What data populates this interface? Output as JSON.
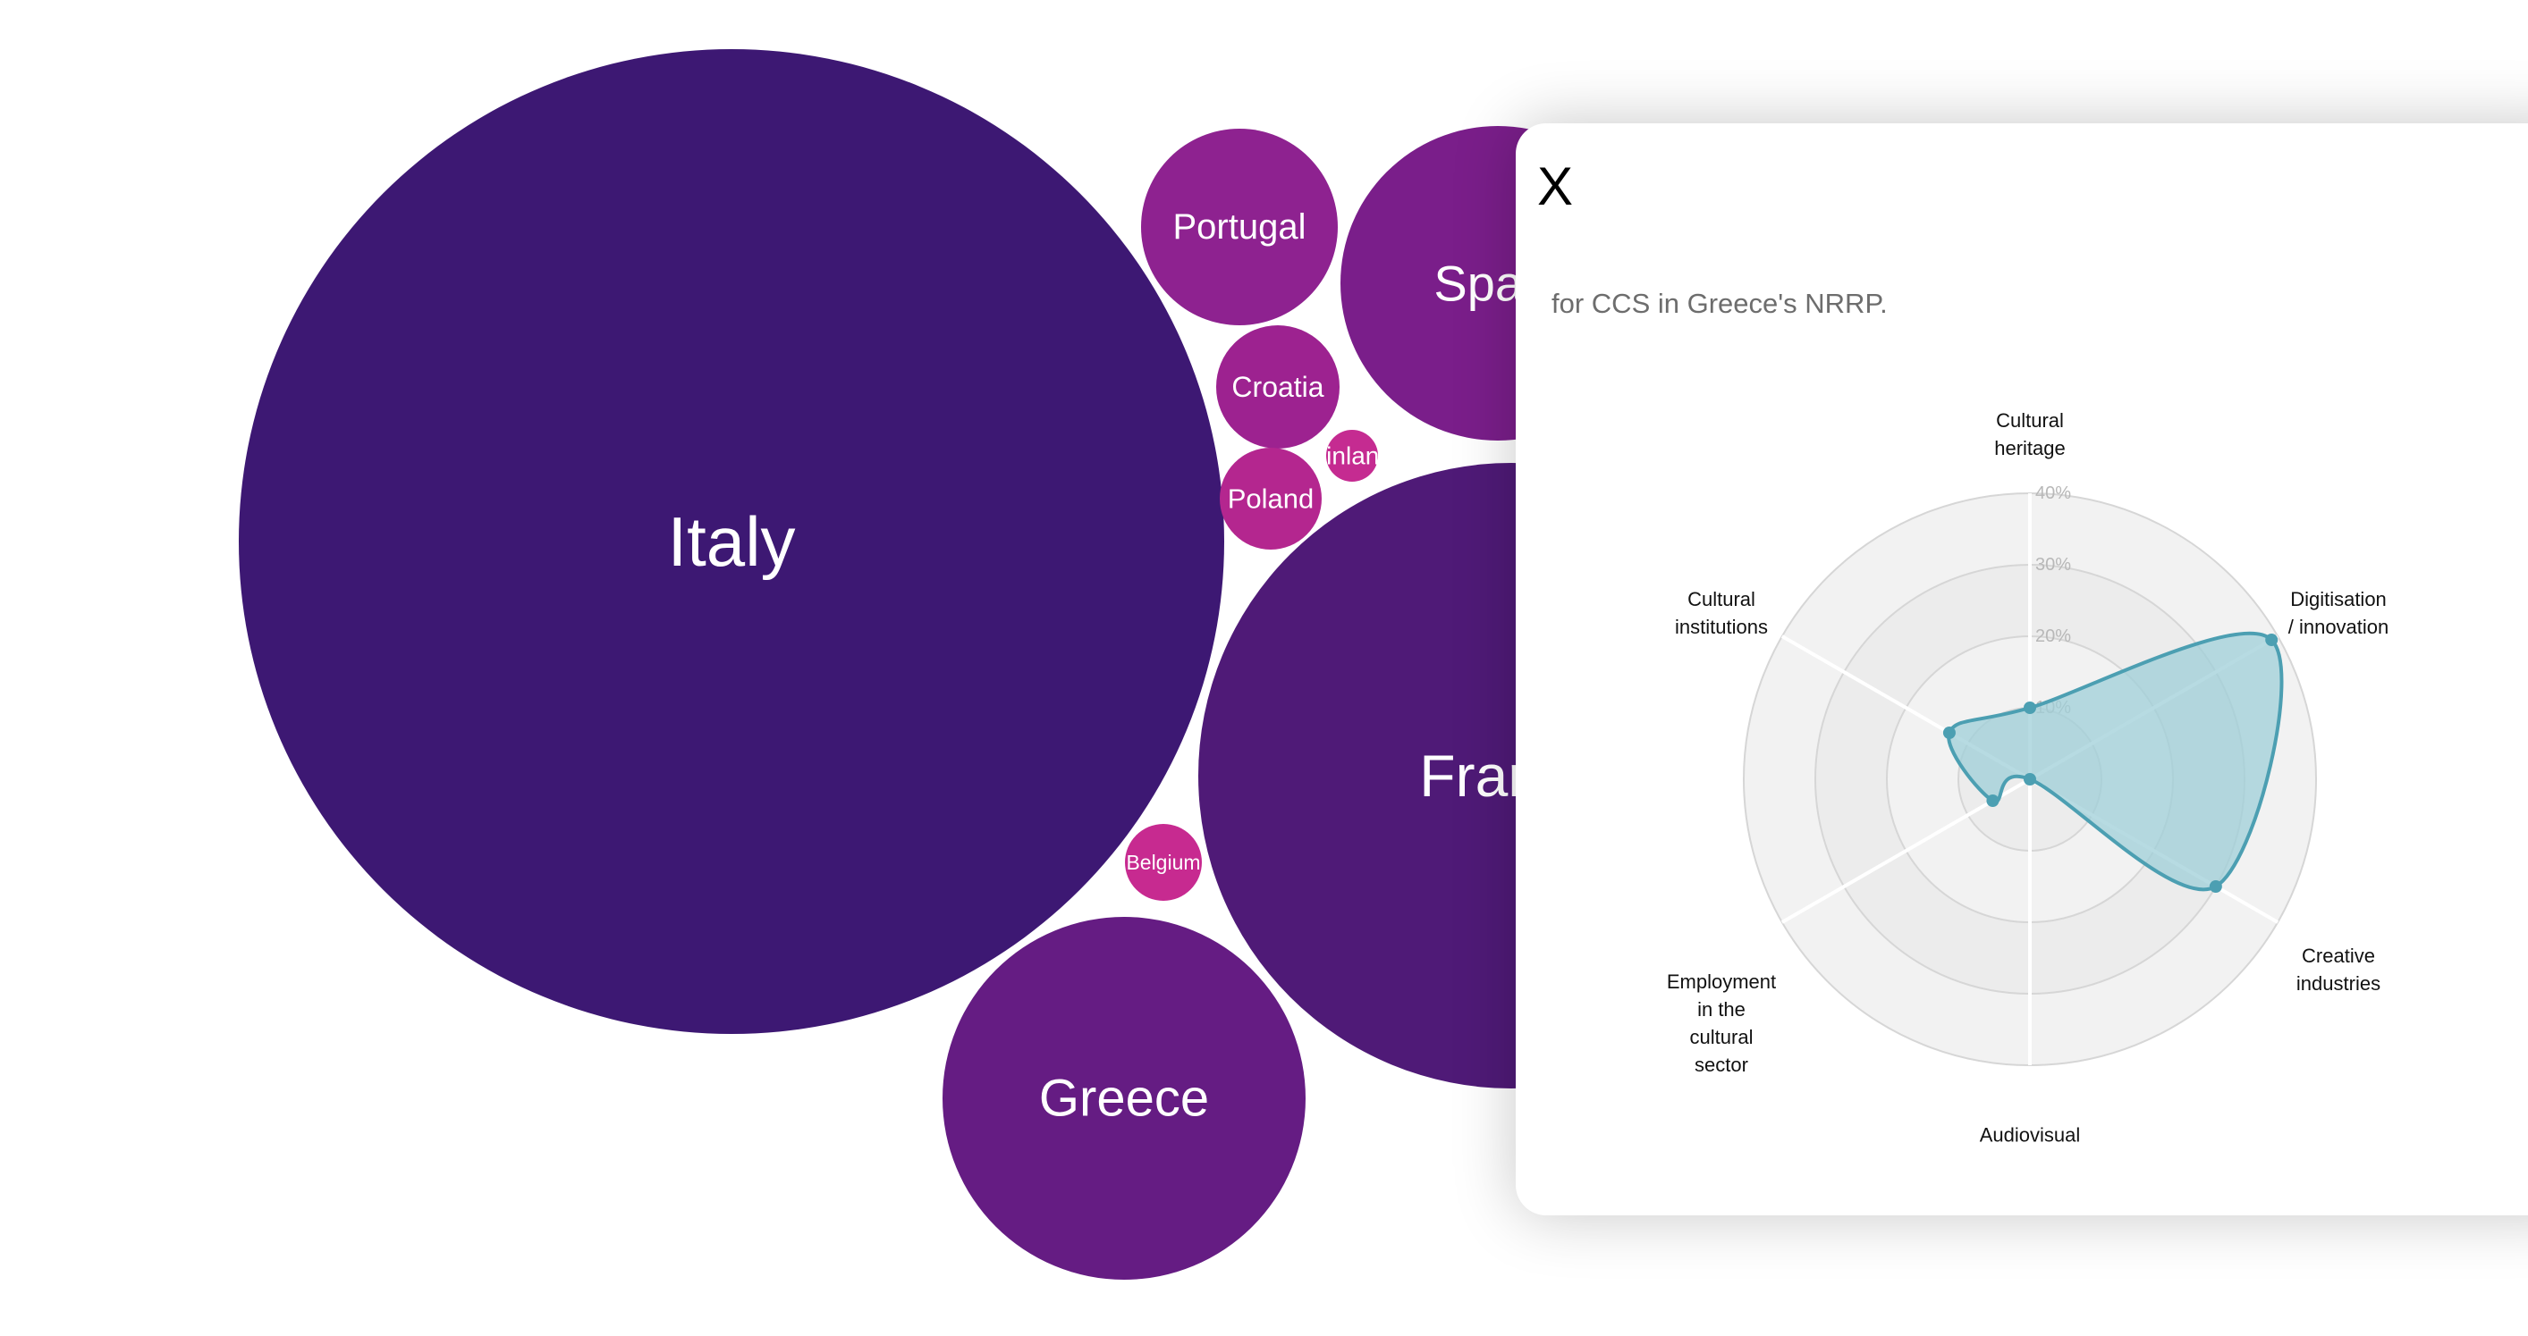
{
  "chart_data": [
    {
      "type": "bubble",
      "bubbles": [
        {
          "label": "Italy",
          "color": "#3d1873"
        },
        {
          "label": "France",
          "color": "#4f1a77"
        },
        {
          "label": "Spain",
          "color": "#7a1e8a"
        },
        {
          "label": "Greece",
          "color": "#651c83"
        },
        {
          "label": "Portugal",
          "color": "#8e2290"
        },
        {
          "label": "Croatia",
          "color": "#9d2290"
        },
        {
          "label": "Poland",
          "color": "#b4268f"
        },
        {
          "label": "Finland",
          "color": "#c52b91"
        },
        {
          "label": "Belgium",
          "color": "#c72a90"
        }
      ]
    },
    {
      "type": "radar",
      "subtitle": "for CCS in Greece's NRRP.",
      "axes": [
        "Cultural\nheritage",
        "Digitisation\n/ innovation",
        "Creative\nindustries",
        "Audiovisual",
        "Employment\nin the\ncultural\nsector",
        "Cultural\ninstitutions"
      ],
      "ring_labels": [
        "10%",
        "20%",
        "30%",
        "40%"
      ],
      "rmax": 40,
      "values": [
        10,
        39,
        30,
        0,
        6,
        13
      ],
      "colors": {
        "fill": "#9fcfd8",
        "stroke": "#4c9fb2",
        "point": "#4c9fb2"
      }
    }
  ],
  "modal": {
    "close_label": "X"
  }
}
